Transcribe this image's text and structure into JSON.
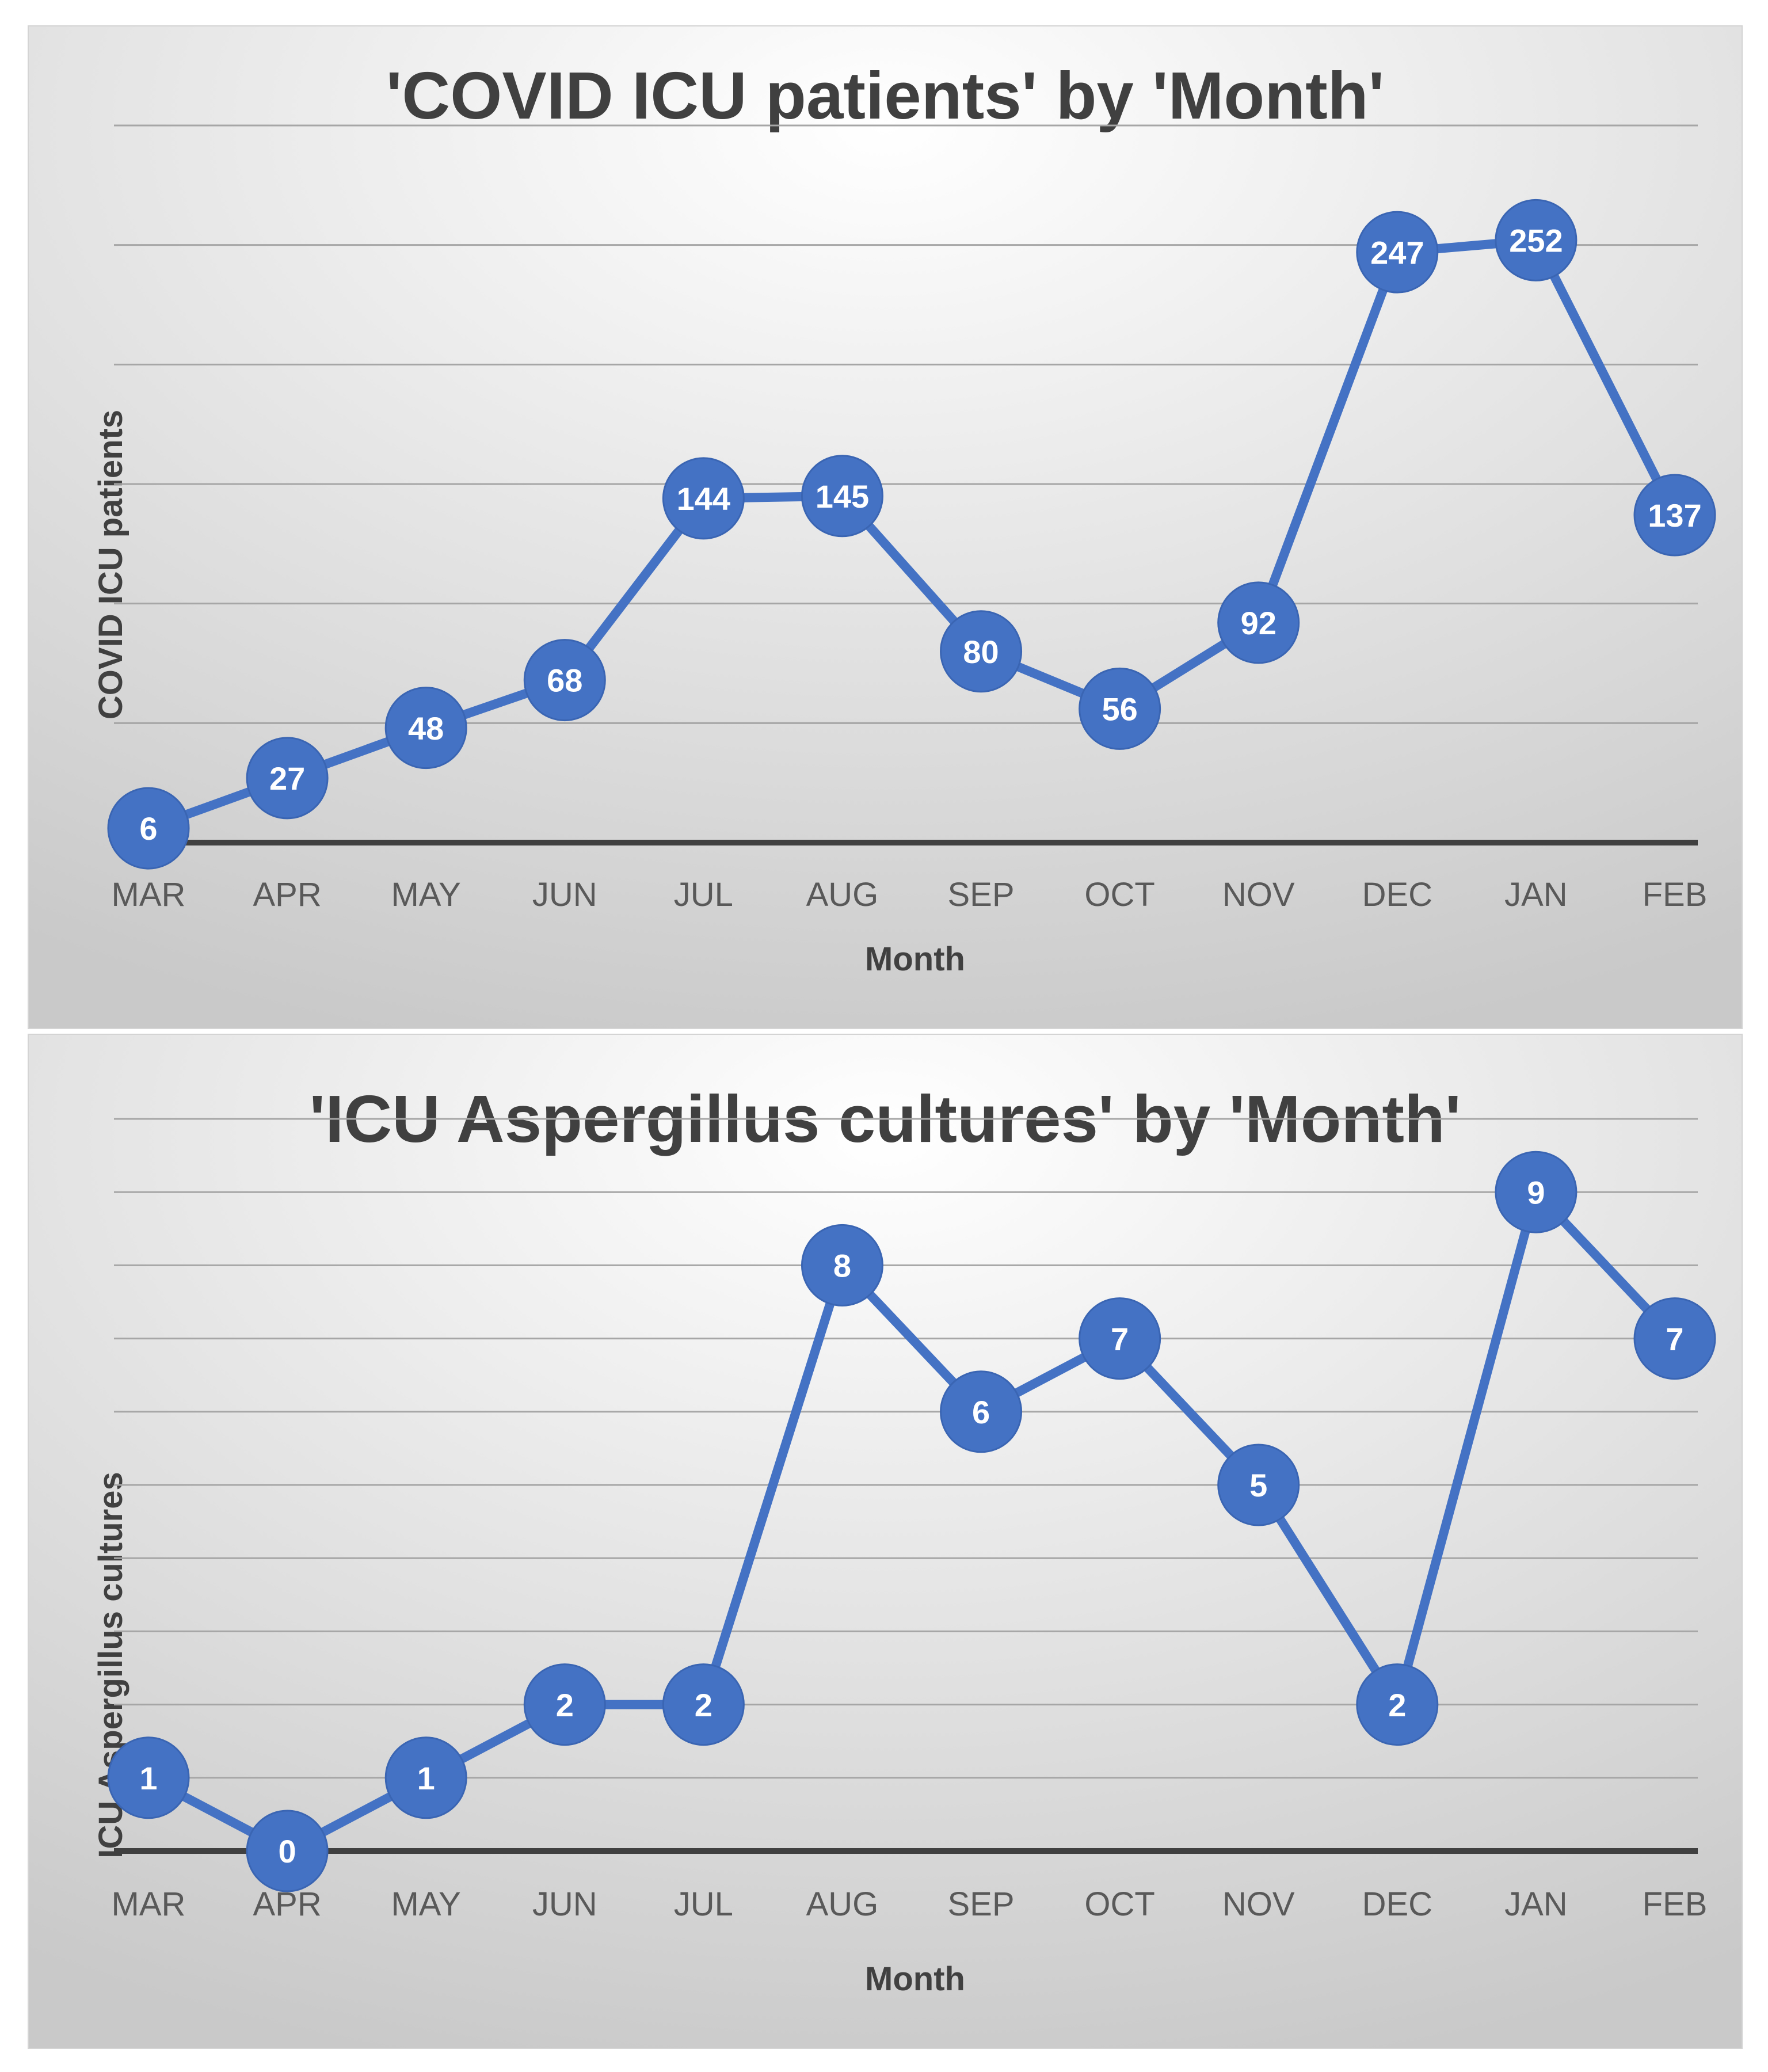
{
  "chart_data": [
    {
      "type": "line",
      "title": "'COVID ICU patients' by 'Month'",
      "xlabel": "Month",
      "ylabel": "COVID ICU patients",
      "categories": [
        "MAR",
        "APR",
        "MAY",
        "JUN",
        "JUL",
        "AUG",
        "SEP",
        "OCT",
        "NOV",
        "DEC",
        "JAN",
        "FEB"
      ],
      "series": [
        {
          "name": "COVID ICU patients",
          "values": [
            6,
            27,
            48,
            68,
            144,
            145,
            80,
            56,
            92,
            247,
            252,
            137
          ]
        }
      ],
      "ylim": [
        0,
        300
      ],
      "grid_step": 50,
      "grid": true,
      "legend": "none",
      "line_color": "#4472c4"
    },
    {
      "type": "line",
      "title": "'ICU Aspergillus cultures' by 'Month'",
      "xlabel": "Month",
      "ylabel": "ICU Aspergillus cultures",
      "categories": [
        "MAR",
        "APR",
        "MAY",
        "JUN",
        "JUL",
        "AUG",
        "SEP",
        "OCT",
        "NOV",
        "DEC",
        "JAN",
        "FEB"
      ],
      "series": [
        {
          "name": "ICU Aspergillus cultures",
          "values": [
            1,
            0,
            1,
            2,
            2,
            8,
            6,
            7,
            5,
            2,
            9,
            7
          ]
        }
      ],
      "ylim": [
        0,
        10
      ],
      "grid_step": 1,
      "grid": true,
      "legend": "none",
      "line_color": "#4472c4"
    }
  ]
}
